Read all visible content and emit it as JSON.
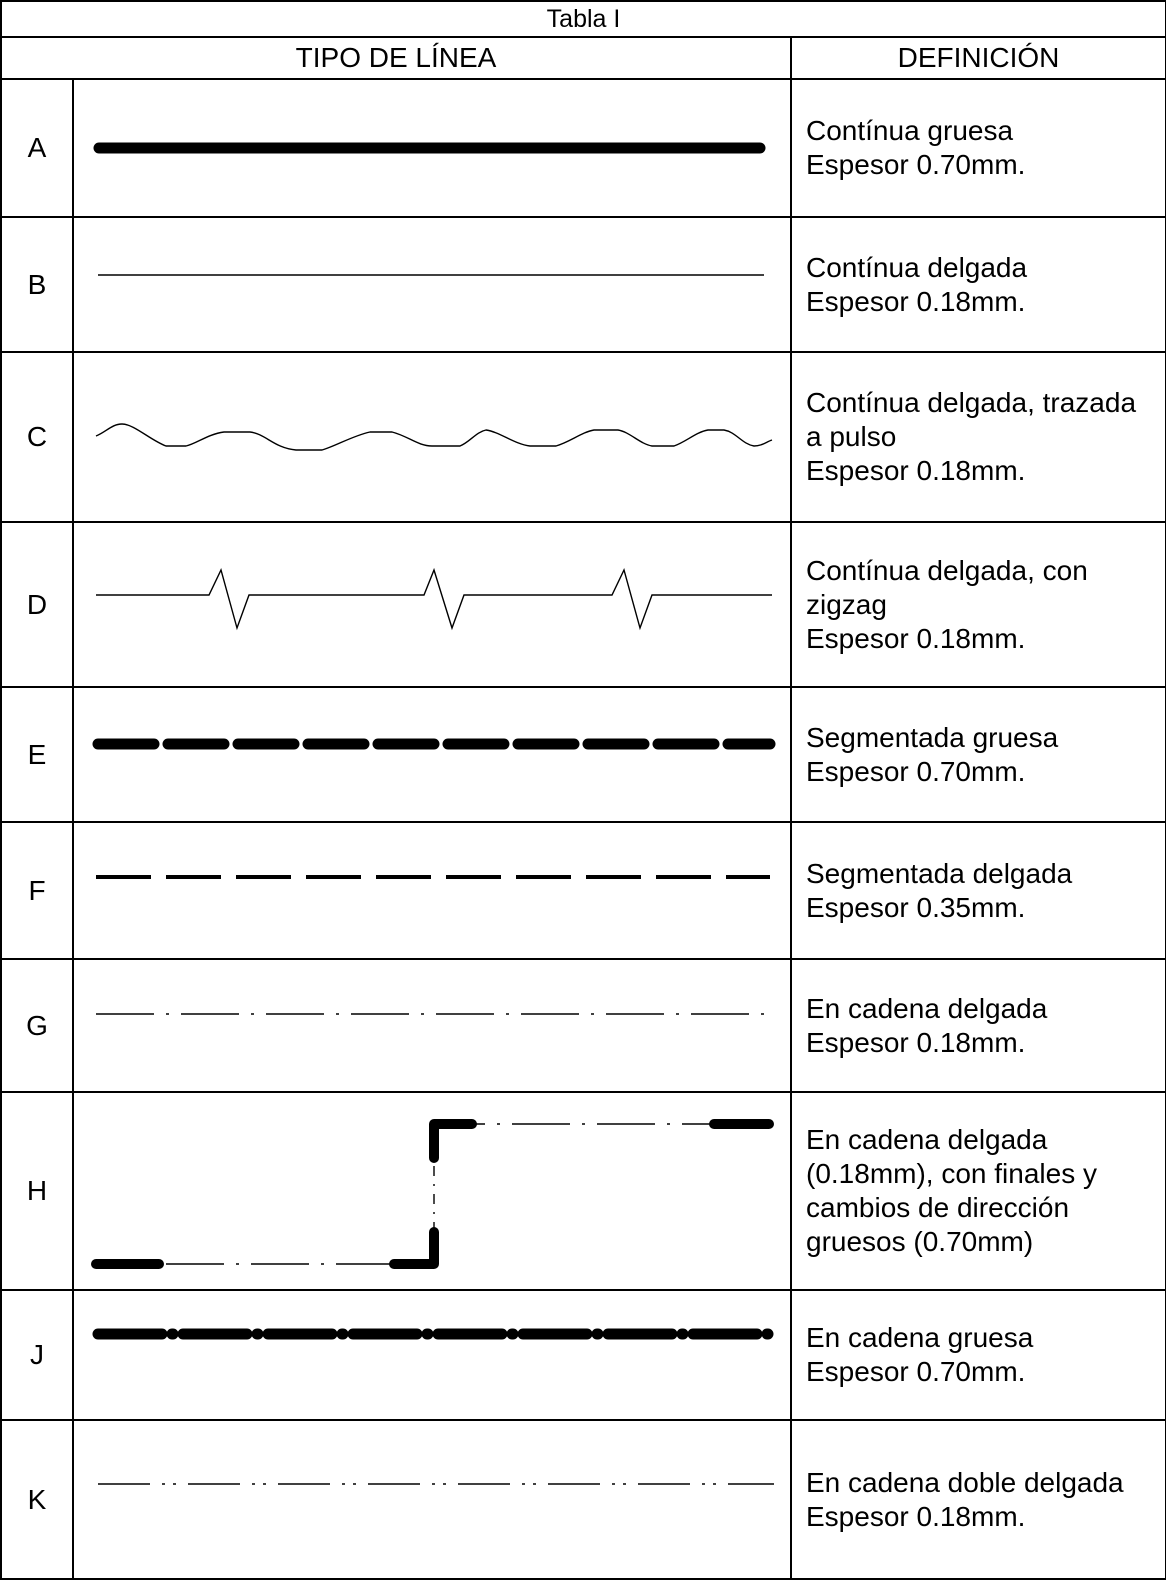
{
  "table": {
    "caption": "Tabla I",
    "headers": {
      "line_type": "TIPO DE LÍNEA",
      "definition": "DEFINICIÓN"
    },
    "rows": [
      {
        "letter": "A",
        "style": "thick-continuous",
        "definition": [
          "Contínua gruesa",
          "Espesor 0.70mm."
        ]
      },
      {
        "letter": "B",
        "style": "thin-continuous",
        "definition": [
          "Contínua delgada",
          "Espesor 0.18mm."
        ]
      },
      {
        "letter": "C",
        "style": "freehand-wavy",
        "definition": [
          "Contínua delgada, trazada",
          "a pulso",
          "Espesor 0.18mm."
        ]
      },
      {
        "letter": "D",
        "style": "zigzag",
        "definition": [
          "Contínua delgada, con",
          "zigzag",
          "Espesor 0.18mm."
        ]
      },
      {
        "letter": "E",
        "style": "thick-dashed",
        "definition": [
          "Segmentada gruesa",
          "Espesor 0.70mm."
        ]
      },
      {
        "letter": "F",
        "style": "thin-dashed",
        "definition": [
          "Segmentada delgada",
          "Espesor 0.35mm."
        ]
      },
      {
        "letter": "G",
        "style": "thin-chain",
        "definition": [
          "En cadena delgada",
          "Espesor 0.18mm."
        ]
      },
      {
        "letter": "H",
        "style": "chain-thick-ends",
        "definition": [
          "En cadena delgada",
          "(0.18mm), con finales y",
          "cambios de dirección",
          "gruesos (0.70mm)"
        ]
      },
      {
        "letter": "J",
        "style": "thick-chain",
        "definition": [
          "En cadena gruesa",
          "Espesor 0.70mm."
        ]
      },
      {
        "letter": "K",
        "style": "double-dot-chain",
        "definition": [
          "En cadena doble delgada",
          "Espesor 0.18mm."
        ]
      }
    ]
  },
  "colors": {
    "ink": "#000000",
    "background": "#ffffff"
  }
}
